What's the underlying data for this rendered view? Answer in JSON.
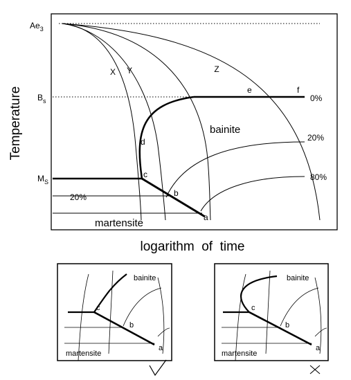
{
  "main": {
    "ylabel": "Temperature",
    "xlabel": "logarithm  of  time",
    "temps": {
      "ae3": "Ae",
      "ae3_sub": "3",
      "bs": "B",
      "bs_sub": "s",
      "ms": "M",
      "ms_sub": "S"
    },
    "curves": {
      "x": "X",
      "y": "Y",
      "z": "Z"
    },
    "points": {
      "a": "a",
      "b": "b",
      "c": "c",
      "d": "d",
      "e": "e",
      "f": "f"
    },
    "percents": {
      "p0": "0%",
      "p20": "20%",
      "p80": "80%",
      "m20": "20%"
    },
    "regions": {
      "bainite": "bainite",
      "martensite": "martensite"
    }
  },
  "inset_left": {
    "bainite": "bainite",
    "martensite": "martensite",
    "points": {
      "a": "a",
      "b": "b",
      "c": "c"
    },
    "mark": "check-mark"
  },
  "inset_right": {
    "bainite": "bainite",
    "martensite": "martensite",
    "points": {
      "a": "a",
      "b": "b",
      "c": "c"
    },
    "mark": "cross-mark"
  }
}
